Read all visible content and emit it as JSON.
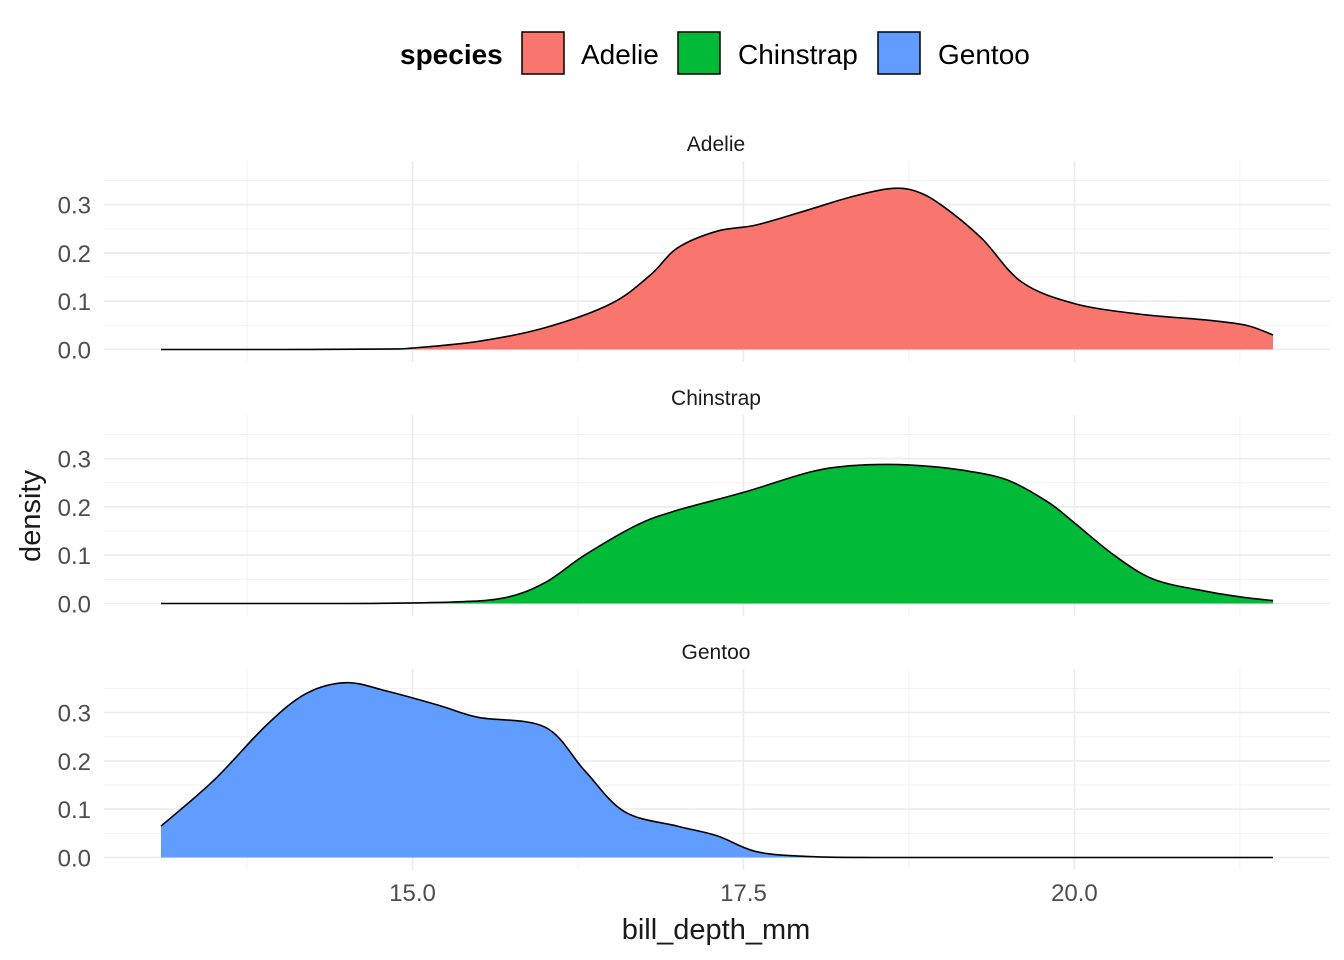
{
  "chart_data": {
    "type": "area",
    "subtype": "faceted density",
    "xlabel": "bill_depth_mm",
    "ylabel": "density",
    "xlim": [
      13.1,
      21.5
    ],
    "ylim": [
      0,
      0.37
    ],
    "x_ticks": [
      15.0,
      17.5,
      20.0
    ],
    "x_tick_labels": [
      "15.0",
      "17.5",
      "20.0"
    ],
    "y_ticks": [
      0,
      0.1,
      0.2,
      0.3
    ],
    "y_tick_labels": [
      "0.0",
      "0.1",
      "0.2",
      "0.3"
    ],
    "grid": true,
    "legend": {
      "title": "species",
      "position": "top",
      "entries": [
        "Adelie",
        "Chinstrap",
        "Gentoo"
      ]
    },
    "series": [
      {
        "name": "Adelie",
        "color": "#F8766D",
        "x": [
          13.1,
          14.0,
          14.8,
          15.0,
          15.5,
          16.0,
          16.5,
          16.8,
          17.0,
          17.3,
          17.6,
          18.0,
          18.3,
          18.6,
          18.8,
          19.0,
          19.3,
          19.6,
          20.0,
          20.5,
          21.0,
          21.3,
          21.5
        ],
        "y": [
          0,
          0,
          0.001,
          0.003,
          0.017,
          0.045,
          0.095,
          0.155,
          0.21,
          0.245,
          0.258,
          0.29,
          0.315,
          0.333,
          0.328,
          0.298,
          0.23,
          0.14,
          0.095,
          0.073,
          0.061,
          0.05,
          0.03
        ]
      },
      {
        "name": "Chinstrap",
        "color": "#00BA38",
        "x": [
          13.1,
          14.5,
          15.3,
          15.7,
          16.0,
          16.3,
          16.7,
          17.0,
          17.5,
          18.0,
          18.3,
          18.6,
          18.9,
          19.2,
          19.5,
          19.8,
          20.0,
          20.3,
          20.6,
          21.0,
          21.3,
          21.5
        ],
        "y": [
          0,
          0,
          0.003,
          0.012,
          0.043,
          0.1,
          0.163,
          0.193,
          0.23,
          0.272,
          0.285,
          0.288,
          0.284,
          0.274,
          0.255,
          0.21,
          0.167,
          0.1,
          0.05,
          0.025,
          0.012,
          0.006
        ]
      },
      {
        "name": "Gentoo",
        "color": "#619CFF",
        "x": [
          13.1,
          13.5,
          13.9,
          14.2,
          14.5,
          14.8,
          15.2,
          15.5,
          16.0,
          16.3,
          16.6,
          17.0,
          17.3,
          17.6,
          18.0,
          18.5,
          19.0,
          20.0,
          21.5
        ],
        "y": [
          0.065,
          0.16,
          0.275,
          0.34,
          0.362,
          0.345,
          0.315,
          0.29,
          0.27,
          0.18,
          0.095,
          0.065,
          0.045,
          0.012,
          0.002,
          0,
          0,
          0,
          0
        ]
      }
    ]
  }
}
